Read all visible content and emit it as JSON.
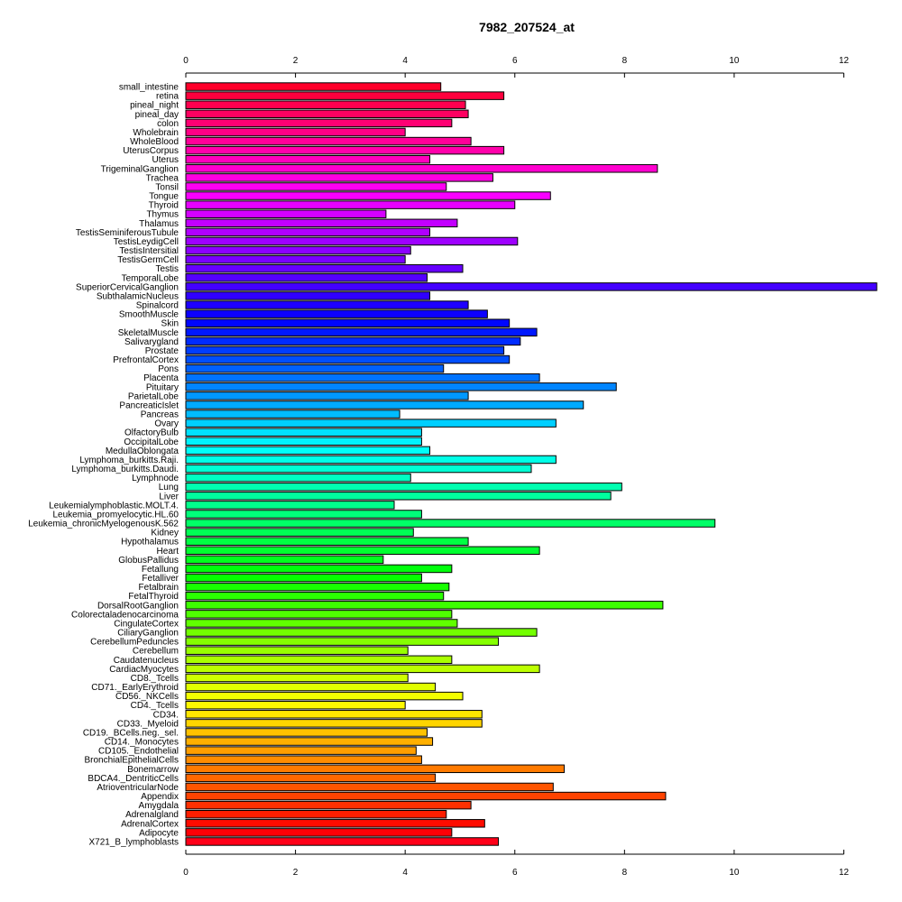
{
  "chart_data": {
    "type": "bar",
    "orientation": "horizontal",
    "title": "7982_207524_at",
    "xlabel": "",
    "ylabel": "",
    "xlim": [
      0,
      12.6
    ],
    "x_ticks": [
      0,
      2,
      4,
      6,
      8,
      10,
      12
    ],
    "x_tick_labels": [
      "0",
      "2",
      "4",
      "6",
      "8",
      "10",
      "12"
    ],
    "axis_positions": [
      "top",
      "bottom"
    ],
    "grid": false,
    "legend": "none",
    "color_scheme": "rainbow",
    "categories": [
      "small_intestine",
      "retina",
      "pineal_night",
      "pineal_day",
      "colon",
      "Wholebrain",
      "WholeBlood",
      "UterusCorpus",
      "Uterus",
      "TrigeminalGanglion",
      "Trachea",
      "Tonsil",
      "Tongue",
      "Thyroid",
      "Thymus",
      "Thalamus",
      "TestisSeminiferousTubule",
      "TestisLeydigCell",
      "TestisIntersitial",
      "TestisGermCell",
      "Testis",
      "TemporalLobe",
      "SuperiorCervicalGanglion",
      "SubthalamicNucleus",
      "Spinalcord",
      "SmoothMuscle",
      "Skin",
      "SkeletalMuscle",
      "Salivarygland",
      "Prostate",
      "PrefrontalCortex",
      "Pons",
      "Placenta",
      "Pituitary",
      "ParietalLobe",
      "PancreaticIslet",
      "Pancreas",
      "Ovary",
      "OlfactoryBulb",
      "OccipitalLobe",
      "MedullaOblongata",
      "Lymphoma_burkitts.Raji.",
      "Lymphoma_burkitts.Daudi.",
      "Lymphnode",
      "Lung",
      "Liver",
      "Leukemialymphoblastic.MOLT.4.",
      "Leukemia_promyelocytic.HL.60",
      "Leukemia_chronicMyelogenousK.562",
      "Kidney",
      "Hypothalamus",
      "Heart",
      "GlobusPallidus",
      "Fetallung",
      "Fetalliver",
      "Fetalbrain",
      "FetalThyroid",
      "DorsalRootGanglion",
      "Colorectaladenocarcinoma",
      "CingulateCortex",
      "CiliaryGanglion",
      "CerebellumPeduncles",
      "Cerebellum",
      "Caudatenucleus",
      "CardiacMyocytes",
      "CD8._Tcells",
      "CD71._EarlyErythroid",
      "CD56._NKCells",
      "CD4._Tcells",
      "CD34.",
      "CD33._Myeloid",
      "CD19._BCells.neg._sel.",
      "CD14._Monocytes",
      "CD105._Endothelial",
      "BronchialEpithelialCells",
      "Bonemarrow",
      "BDCA4._DentriticCells",
      "AtrioventricularNode",
      "Appendix",
      "Amygdala",
      "Adrenalgland",
      "AdrenalCortex",
      "Adipocyte",
      "X721_B_lymphoblasts"
    ],
    "values": [
      4.65,
      5.8,
      5.1,
      5.15,
      4.85,
      4.0,
      5.2,
      5.8,
      4.45,
      8.6,
      5.6,
      4.75,
      6.65,
      6.0,
      3.65,
      4.95,
      4.45,
      6.05,
      4.1,
      4.0,
      5.05,
      4.4,
      12.6,
      4.45,
      5.15,
      5.5,
      5.9,
      6.4,
      6.1,
      5.8,
      5.9,
      4.7,
      6.45,
      7.85,
      5.15,
      7.25,
      3.9,
      6.75,
      4.3,
      4.3,
      4.45,
      6.75,
      6.3,
      4.1,
      7.95,
      7.75,
      3.8,
      4.3,
      9.65,
      4.15,
      5.15,
      6.45,
      3.6,
      4.85,
      4.3,
      4.8,
      4.7,
      8.7,
      4.85,
      4.95,
      6.4,
      5.7,
      4.05,
      4.85,
      6.45,
      4.05,
      4.55,
      5.05,
      4.0,
      5.4,
      5.4,
      4.4,
      4.5,
      4.2,
      4.3,
      6.9,
      4.55,
      6.7,
      8.75,
      5.2,
      4.75,
      5.45,
      4.85,
      5.7
    ]
  }
}
